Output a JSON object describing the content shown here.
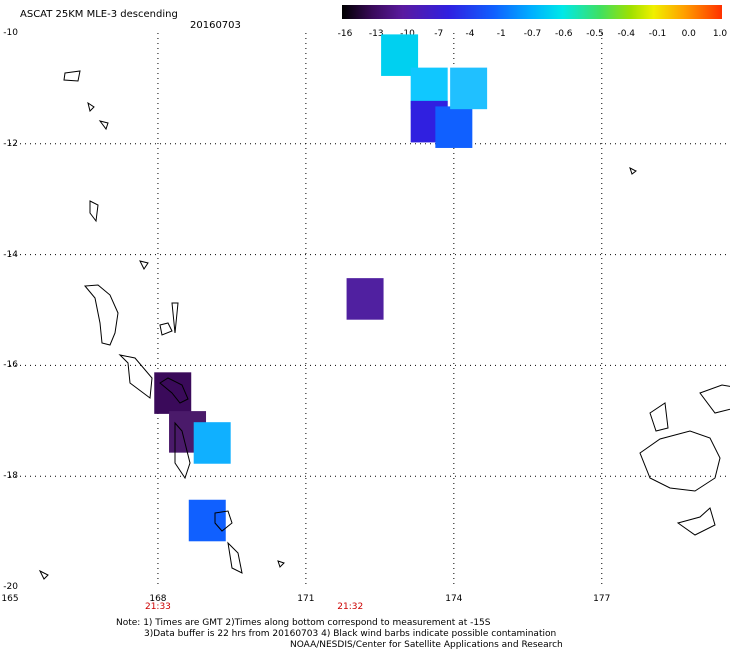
{
  "header": {
    "title": "ASCAT 25KM MLE-3 descending",
    "date": "20160703"
  },
  "colorbar": {
    "labels": [
      "-16",
      "-13",
      "-10",
      "-7",
      "-4",
      "-1",
      "-0.7",
      "-0.6",
      "-0.5",
      "-0.4",
      "-0.1",
      "0.0",
      "1.0"
    ]
  },
  "axes": {
    "lat_labels": [
      "-10",
      "-12",
      "-14",
      "-16",
      "-18",
      "-20"
    ],
    "lon_labels": [
      "165",
      "168",
      "171",
      "174",
      "177"
    ],
    "time_labels": [
      "21:33",
      "21:32"
    ]
  },
  "map_data": {
    "type": "swath-grid",
    "lon_range": [
      165,
      180
    ],
    "lat_range": [
      -20,
      -10
    ],
    "grid": "dotted",
    "cells": [
      {
        "lon": 168.3,
        "lat": -16.5,
        "value": -16,
        "color": "#3a0a5a"
      },
      {
        "lon": 168.6,
        "lat": -17.2,
        "value": -16,
        "color": "#4a1a6a"
      },
      {
        "lon": 169.1,
        "lat": -17.4,
        "value": -4,
        "color": "#10b0ff"
      },
      {
        "lon": 169.0,
        "lat": -18.8,
        "value": -7,
        "color": "#1060ff"
      },
      {
        "lon": 172.2,
        "lat": -14.8,
        "value": -13,
        "color": "#5020a0"
      },
      {
        "lon": 172.9,
        "lat": -10.4,
        "value": -4,
        "color": "#00d0f0"
      },
      {
        "lon": 173.5,
        "lat": -11.0,
        "value": -1,
        "color": "#10c8ff"
      },
      {
        "lon": 173.5,
        "lat": -11.6,
        "value": -10,
        "color": "#3020e0"
      },
      {
        "lon": 174.0,
        "lat": -11.7,
        "value": -7,
        "color": "#1060ff"
      },
      {
        "lon": 174.3,
        "lat": -11.0,
        "value": -1,
        "color": "#20c0ff"
      }
    ],
    "colors": {
      "grid": "#000000",
      "coast": "#000000"
    }
  },
  "notes": {
    "line1": "Note: 1) Times are GMT 2)Times along bottom correspond to measurement at -15S",
    "line2": "3)Data buffer is 22 hrs from 20160703 4) Black wind barbs indicate possible contamination",
    "credit": "NOAA/NESDIS/Center for Satellite Applications and Research"
  }
}
